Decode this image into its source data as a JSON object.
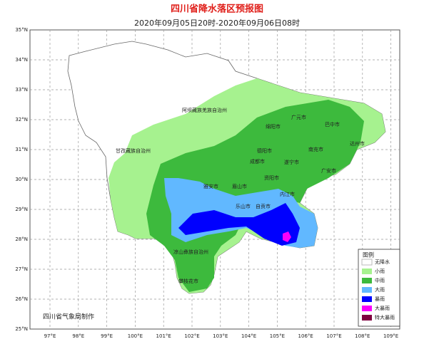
{
  "header": {
    "title": "四川省降水落区预报图",
    "subtitle": "2020年09月05日20时-2020年09月06日08时"
  },
  "axes": {
    "lat_labels": [
      "35°N",
      "34°N",
      "33°N",
      "32°N",
      "31°N",
      "30°N",
      "29°N",
      "28°N",
      "27°N",
      "26°N",
      "25°N"
    ],
    "lon_labels": [
      "97°E",
      "98°E",
      "99°E",
      "100°E",
      "101°E",
      "102°E",
      "103°E",
      "104°E",
      "105°E",
      "106°E",
      "107°E",
      "108°E",
      "109°E"
    ]
  },
  "places": [
    "阿坝藏族羌族自治州",
    "甘孜藏族自治州",
    "凉山彝族自治州",
    "攀枝花市",
    "广元市",
    "巴中市",
    "绵阳市",
    "德阳市",
    "南充市",
    "达州市",
    "成都市",
    "遂宁市",
    "广安市",
    "雅安市",
    "眉山市",
    "资阳市",
    "内江市",
    "乐山市",
    "自贡市"
  ],
  "legend": {
    "title": "图例",
    "items": [
      {
        "label": "无降水",
        "color": "#ffffff"
      },
      {
        "label": "小雨",
        "color": "#a6f28f"
      },
      {
        "label": "中雨",
        "color": "#3dba3d"
      },
      {
        "label": "大雨",
        "color": "#61b8ff"
      },
      {
        "label": "暴雨",
        "color": "#0000fe"
      },
      {
        "label": "大暴雨",
        "color": "#fa00fa"
      },
      {
        "label": "特大暴雨",
        "color": "#800040"
      }
    ]
  },
  "footer": "四川省气象局制作"
}
